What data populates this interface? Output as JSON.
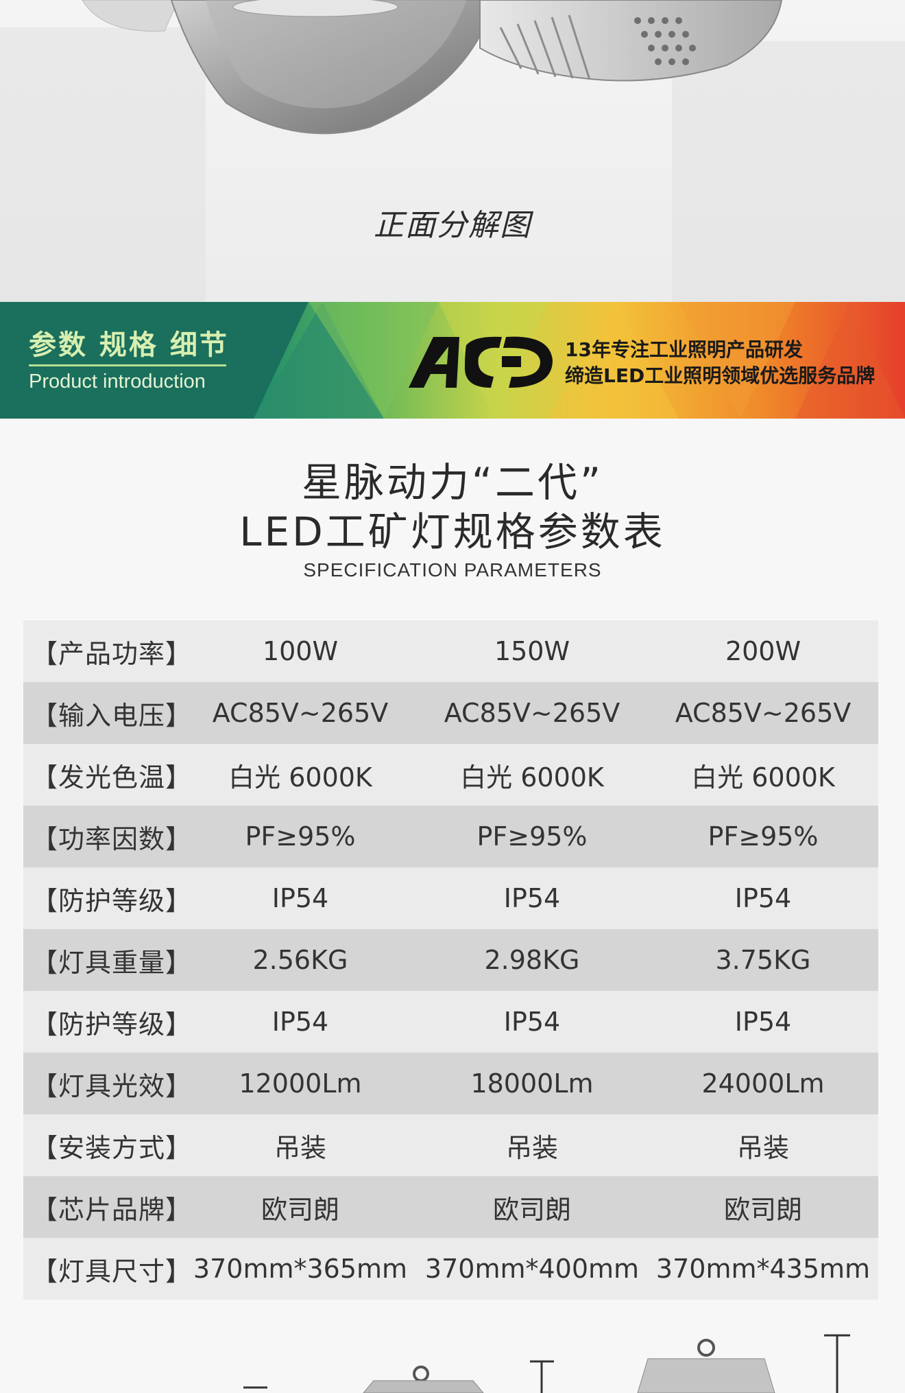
{
  "hero": {
    "caption": "正面分解图"
  },
  "banner": {
    "title_cn": "参数 规格 细节",
    "title_en": "Product introduction",
    "slogan_line1": "13年专注工业照明产品研发",
    "slogan_line2": "缔造LED工业照明领域优选服务品牌"
  },
  "heading": {
    "line1": "星脉动力“二代”",
    "line2": "LED工矿灯规格参数表",
    "subtitle": "SPECIFICATION PARAMETERS"
  },
  "spec_table": {
    "rows": [
      {
        "label": "【产品功率】",
        "values": [
          "100W",
          "150W",
          "200W"
        ]
      },
      {
        "label": "【输入电压】",
        "values": [
          "AC85V~265V",
          "AC85V~265V",
          "AC85V~265V"
        ]
      },
      {
        "label": "【发光色温】",
        "values": [
          "白光 6000K",
          "白光 6000K",
          "白光 6000K"
        ]
      },
      {
        "label": "【功率因数】",
        "values": [
          "PF≥95%",
          "PF≥95%",
          "PF≥95%"
        ]
      },
      {
        "label": "【防护等级】",
        "values": [
          "IP54",
          "IP54",
          "IP54"
        ]
      },
      {
        "label": "【灯具重量】",
        "values": [
          "2.56KG",
          "2.98KG",
          "3.75KG"
        ]
      },
      {
        "label": "【防护等级】",
        "values": [
          "IP54",
          "IP54",
          "IP54"
        ]
      },
      {
        "label": "【灯具光效】",
        "values": [
          "12000Lm",
          "18000Lm",
          "24000Lm"
        ]
      },
      {
        "label": "【安装方式】",
        "values": [
          "吊装",
          "吊装",
          "吊装"
        ]
      },
      {
        "label": "【芯片品牌】",
        "values": [
          "欧司朗",
          "欧司朗",
          "欧司朗"
        ]
      },
      {
        "label": "【灯具尺寸】",
        "values": [
          "370mm*365mm",
          "370mm*400mm",
          "370mm*435mm"
        ]
      }
    ]
  },
  "colors": {
    "banner_dark_green": "#1a6f5d",
    "banner_gradient_end": "#e53f2b",
    "row_light": "#ebebeb",
    "row_dark": "#d5d5d5"
  }
}
